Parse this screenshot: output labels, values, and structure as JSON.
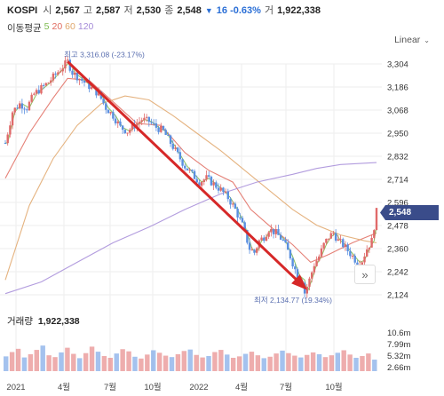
{
  "header": {
    "symbol": "KOSPI",
    "open_label": "시",
    "open": "2,567",
    "high_label": "고",
    "high": "2,587",
    "low_label": "저",
    "low": "2,530",
    "close_label": "종",
    "close": "2,548",
    "change": "16 -0.63%",
    "volume_label": "거",
    "volume": "1,922,338"
  },
  "ma_legend": {
    "label": "이동평균",
    "periods": [
      "5",
      "20",
      "60",
      "120"
    ],
    "colors": [
      "#7dbb4f",
      "#e06a5e",
      "#e0a66a",
      "#a58bd8"
    ]
  },
  "scale": {
    "label": "Linear"
  },
  "current_price": "2,548",
  "annotations": {
    "high": "최고 3,316.08 (-23.17%)",
    "low": "최저 2,134.77 (19.34%)"
  },
  "volume_panel": {
    "label": "거래량",
    "value": "1,922,338"
  },
  "colors": {
    "up": "#e06a6a",
    "down": "#5a8fe0",
    "arrow": "#d62828",
    "price_tag": "#3a4c8a",
    "grid": "#eeeeee"
  },
  "chart_data": {
    "type": "candlestick",
    "y_ticks": [
      "3,304",
      "3,186",
      "3,068",
      "2,950",
      "2,832",
      "2,714",
      "2,596",
      "2,478",
      "2,360",
      "2,242",
      "2,124"
    ],
    "x_ticks": [
      "2021",
      "4월",
      "7월",
      "10월",
      "2022",
      "4월",
      "7월",
      "10월"
    ],
    "ylim": [
      2124,
      3304
    ],
    "volume_ticks": [
      "10.6m",
      "7.99m",
      "5.32m",
      "2.66m"
    ],
    "vol_max": 10.6,
    "price_path": [
      [
        0,
        2900
      ],
      [
        6,
        3060
      ],
      [
        12,
        3100
      ],
      [
        18,
        3080
      ],
      [
        24,
        3150
      ],
      [
        30,
        3180
      ],
      [
        36,
        3210
      ],
      [
        42,
        3250
      ],
      [
        48,
        3290
      ],
      [
        52,
        3316
      ],
      [
        56,
        3260
      ],
      [
        62,
        3230
      ],
      [
        68,
        3200
      ],
      [
        72,
        3180
      ],
      [
        78,
        3150
      ],
      [
        84,
        3080
      ],
      [
        90,
        3040
      ],
      [
        96,
        2980
      ],
      [
        102,
        2960
      ],
      [
        108,
        2990
      ],
      [
        114,
        3020
      ],
      [
        120,
        3010
      ],
      [
        126,
        2980
      ],
      [
        132,
        2960
      ],
      [
        138,
        2900
      ],
      [
        144,
        2840
      ],
      [
        150,
        2780
      ],
      [
        156,
        2740
      ],
      [
        162,
        2700
      ],
      [
        168,
        2720
      ],
      [
        174,
        2690
      ],
      [
        180,
        2660
      ],
      [
        186,
        2620
      ],
      [
        192,
        2560
      ],
      [
        198,
        2480
      ],
      [
        204,
        2360
      ],
      [
        208,
        2340
      ],
      [
        212,
        2400
      ],
      [
        216,
        2420
      ],
      [
        220,
        2460
      ],
      [
        226,
        2440
      ],
      [
        232,
        2400
      ],
      [
        238,
        2320
      ],
      [
        244,
        2220
      ],
      [
        248,
        2200
      ],
      [
        250,
        2134
      ],
      [
        254,
        2200
      ],
      [
        258,
        2280
      ],
      [
        262,
        2320
      ],
      [
        266,
        2380
      ],
      [
        270,
        2420
      ],
      [
        274,
        2440
      ],
      [
        278,
        2400
      ],
      [
        282,
        2380
      ],
      [
        286,
        2350
      ],
      [
        290,
        2320
      ],
      [
        294,
        2290
      ],
      [
        298,
        2300
      ],
      [
        302,
        2360
      ],
      [
        306,
        2400
      ],
      [
        310,
        2548
      ]
    ],
    "ma_lines": [
      {
        "name": "20",
        "values": [
          [
            0,
            2720
          ],
          [
            20,
            2950
          ],
          [
            40,
            3130
          ],
          [
            52,
            3230
          ],
          [
            70,
            3220
          ],
          [
            90,
            3110
          ],
          [
            110,
            3000
          ],
          [
            130,
            2990
          ],
          [
            150,
            2850
          ],
          [
            170,
            2760
          ],
          [
            190,
            2700
          ],
          [
            205,
            2560
          ],
          [
            220,
            2480
          ],
          [
            240,
            2380
          ],
          [
            255,
            2290
          ],
          [
            270,
            2330
          ],
          [
            290,
            2390
          ],
          [
            310,
            2440
          ]
        ]
      },
      {
        "name": "60",
        "values": [
          [
            0,
            2200
          ],
          [
            20,
            2580
          ],
          [
            40,
            2820
          ],
          [
            60,
            2990
          ],
          [
            80,
            3100
          ],
          [
            100,
            3140
          ],
          [
            120,
            3120
          ],
          [
            140,
            3040
          ],
          [
            160,
            2950
          ],
          [
            180,
            2860
          ],
          [
            200,
            2760
          ],
          [
            220,
            2660
          ],
          [
            240,
            2560
          ],
          [
            260,
            2480
          ],
          [
            280,
            2430
          ],
          [
            300,
            2400
          ],
          [
            310,
            2390
          ]
        ]
      },
      {
        "name": "120",
        "values": [
          [
            0,
            2130
          ],
          [
            30,
            2190
          ],
          [
            60,
            2290
          ],
          [
            90,
            2390
          ],
          [
            120,
            2470
          ],
          [
            150,
            2560
          ],
          [
            180,
            2640
          ],
          [
            210,
            2700
          ],
          [
            240,
            2740
          ],
          [
            260,
            2770
          ],
          [
            280,
            2790
          ],
          [
            310,
            2800
          ]
        ]
      }
    ],
    "trend_arrow": {
      "from": [
        52,
        3316
      ],
      "to": [
        250,
        2134
      ]
    },
    "volumes": [
      4.1,
      5.3,
      6.2,
      3.8,
      4.7,
      5.9,
      7.1,
      4.4,
      3.9,
      5.2,
      6.5,
      4.8,
      3.6,
      5.0,
      6.8,
      5.4,
      4.2,
      3.7,
      4.9,
      6.1,
      5.5,
      4.0,
      3.5,
      4.6,
      5.8,
      5.1,
      4.3,
      3.9,
      4.7,
      5.6,
      6.0,
      4.5,
      3.8,
      4.2,
      5.3,
      5.9,
      4.6,
      3.7,
      4.1,
      4.8,
      5.4,
      4.4,
      3.6,
      4.0,
      4.9,
      5.7,
      5.0,
      4.3,
      3.8,
      4.5,
      5.2,
      4.7,
      3.9,
      4.4,
      5.1,
      5.8,
      4.6,
      3.7,
      4.2,
      4.9,
      3.2
    ]
  }
}
